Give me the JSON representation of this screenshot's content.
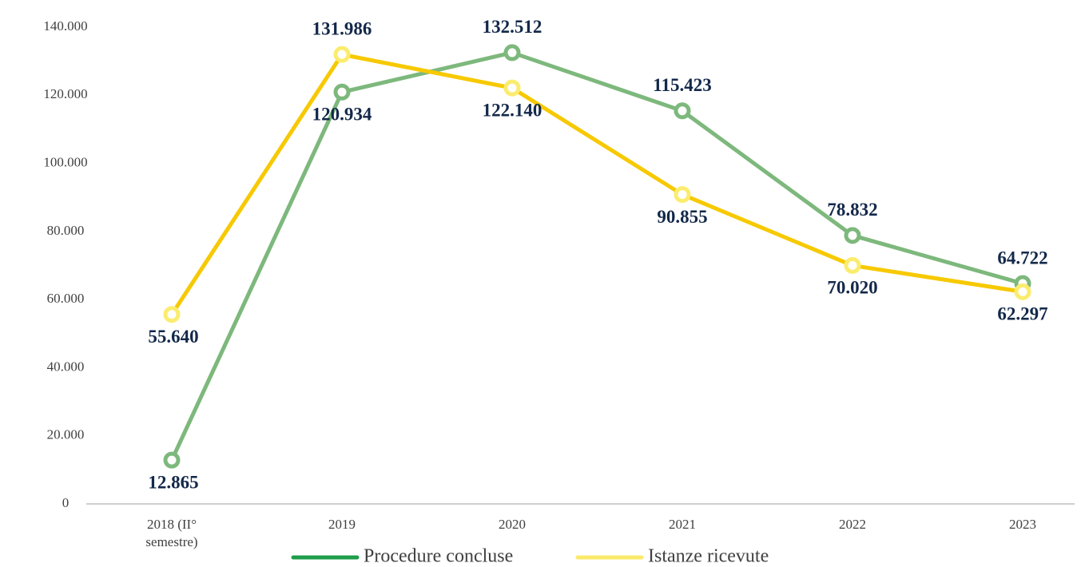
{
  "chart_data": {
    "type": "line",
    "categories": [
      "2018 (II° semestre)",
      "2019",
      "2020",
      "2021",
      "2022",
      "2023"
    ],
    "series": [
      {
        "name": "Procedure concluse",
        "color": "#7db87c",
        "values": [
          12865,
          120934,
          132512,
          115423,
          78832,
          64722
        ],
        "value_labels": [
          "12.865",
          "120.934",
          "132.512",
          "115.423",
          "78.832",
          "64.722"
        ]
      },
      {
        "name": "Istanze ricevute",
        "color": "#f7c900",
        "values": [
          55640,
          131986,
          122140,
          90855,
          70020,
          62297
        ],
        "value_labels": [
          "55.640",
          "131.986",
          "122.140",
          "90.855",
          "70.020",
          "62.297"
        ]
      }
    ],
    "ylim": [
      0,
      140000
    ],
    "yticks": [
      0,
      {
        "value": 20000,
        "label": "20.000"
      },
      {
        "value": 40000,
        "label": "40.000"
      },
      {
        "value": 60000,
        "label": "60.000"
      },
      {
        "value": 80000,
        "label": "80.000"
      },
      {
        "value": 100000,
        "label": "100.000"
      },
      {
        "value": 120000,
        "label": "120.000"
      },
      {
        "value": 140000,
        "label": "140.000"
      }
    ],
    "grid": false,
    "legend": "bottom"
  }
}
